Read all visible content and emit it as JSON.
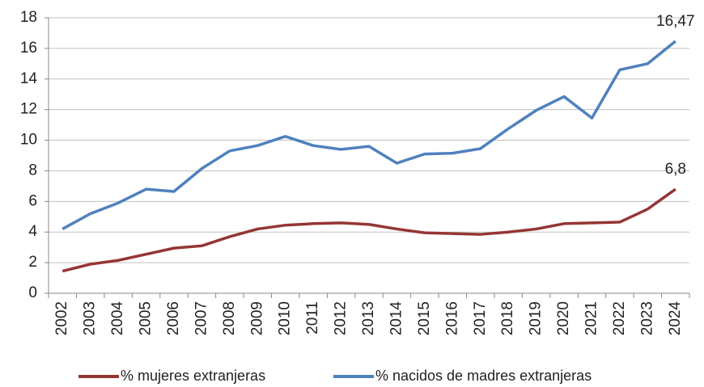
{
  "chart_data": {
    "type": "line",
    "categories": [
      "2002",
      "2003",
      "2004",
      "2005",
      "2006",
      "2007",
      "2008",
      "2009",
      "2010",
      "2011",
      "2012",
      "2013",
      "2014",
      "2015",
      "2016",
      "2017",
      "2018",
      "2019",
      "2020",
      "2021",
      "2022",
      "2023",
      "2024"
    ],
    "series": [
      {
        "name": "% mujeres extranjeras",
        "color": "#943634",
        "values": [
          1.45,
          1.9,
          2.15,
          2.55,
          2.95,
          3.1,
          3.7,
          4.2,
          4.45,
          4.55,
          4.6,
          4.5,
          4.2,
          3.95,
          3.9,
          3.85,
          4.0,
          4.2,
          4.55,
          4.6,
          4.65,
          5.5,
          6.8
        ],
        "value_labels": [
          null,
          null,
          null,
          null,
          null,
          null,
          null,
          null,
          null,
          null,
          null,
          null,
          null,
          null,
          null,
          null,
          null,
          null,
          null,
          null,
          null,
          null,
          "6,8"
        ]
      },
      {
        "name": "% nacidos de madres extranjeras",
        "color": "#4f81bd",
        "values": [
          4.2,
          5.2,
          5.9,
          6.8,
          6.65,
          8.15,
          9.3,
          9.65,
          10.25,
          9.65,
          9.4,
          9.6,
          8.5,
          9.1,
          9.15,
          9.45,
          10.75,
          11.95,
          12.85,
          11.45,
          14.6,
          15.0,
          16.47
        ],
        "value_labels": [
          null,
          null,
          null,
          null,
          null,
          null,
          null,
          null,
          null,
          null,
          null,
          null,
          null,
          null,
          null,
          null,
          null,
          null,
          null,
          null,
          null,
          null,
          "16,47"
        ]
      }
    ],
    "ylim": [
      0,
      18
    ],
    "yticks": [
      0,
      2,
      4,
      6,
      8,
      10,
      12,
      14,
      16,
      18
    ],
    "grid": true,
    "legend": "bottom"
  }
}
